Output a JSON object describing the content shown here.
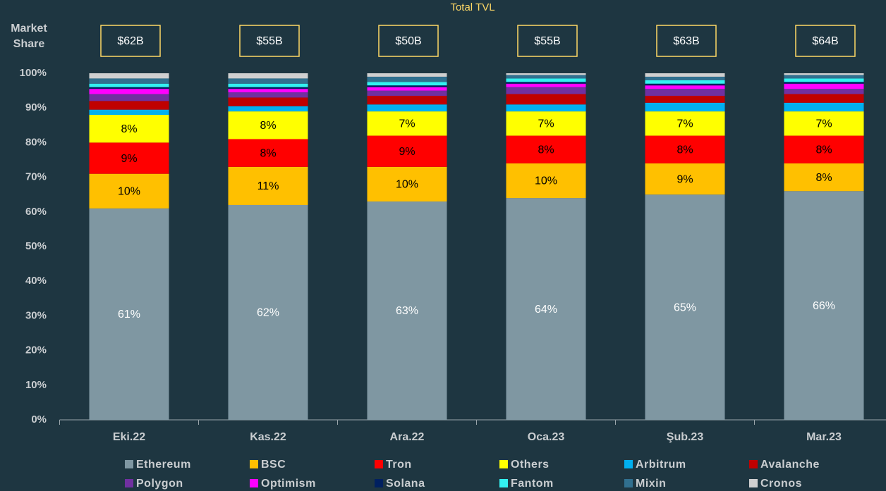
{
  "chart_data": {
    "type": "stacked_bar",
    "y_label": "Market Share",
    "categories": [
      "Eki.22",
      "Kas.22",
      "Ara.22",
      "Oca.23",
      "Şub.23",
      "Mar.23"
    ],
    "tvl": {
      "title": "Total TVL",
      "values": [
        62,
        55,
        50,
        55,
        63,
        64
      ],
      "value_labels": [
        "$62B",
        "$55B",
        "$50B",
        "$55B",
        "$63B",
        "$64B"
      ]
    },
    "series": [
      {
        "name": "Ethereum",
        "color": "#7f97a2",
        "values": [
          61,
          62,
          63,
          64,
          65,
          66
        ],
        "value_labels": [
          "61%",
          "62%",
          "63%",
          "64%",
          "65%",
          "66%"
        ]
      },
      {
        "name": "BSC",
        "color": "#ffc000",
        "values": [
          10,
          11,
          10,
          10,
          9,
          8
        ],
        "value_labels": [
          "10%",
          "11%",
          "10%",
          "10%",
          "9%",
          "8%"
        ]
      },
      {
        "name": "Tron",
        "color": "#ff0000",
        "values": [
          9,
          8,
          9,
          8,
          8,
          8
        ],
        "value_labels": [
          "9%",
          "8%",
          "9%",
          "8%",
          "8%",
          "8%"
        ]
      },
      {
        "name": "Others",
        "color": "#ffff00",
        "values": [
          8,
          8,
          7,
          7,
          7,
          7
        ],
        "value_labels": [
          "8%",
          "8%",
          "7%",
          "7%",
          "7%",
          "7%"
        ]
      },
      {
        "name": "Arbitrum",
        "color": "#00b0f0",
        "values": [
          1.5,
          1.5,
          2,
          2,
          2.5,
          2.5
        ]
      },
      {
        "name": "Avalanche",
        "color": "#c00000",
        "values": [
          2.5,
          2.5,
          2.5,
          3,
          2,
          2.5
        ]
      },
      {
        "name": "Polygon",
        "color": "#7030a0",
        "values": [
          2,
          1.5,
          1.5,
          2,
          2,
          1.5
        ]
      },
      {
        "name": "Optimism",
        "color": "#ff00ff",
        "values": [
          1.5,
          1,
          1,
          1,
          1,
          1.5
        ]
      },
      {
        "name": "Solana",
        "color": "#002060",
        "values": [
          0.5,
          0.5,
          0.5,
          0.5,
          0.5,
          0.5
        ]
      },
      {
        "name": "Fantom",
        "color": "#33f0f0",
        "values": [
          1,
          1,
          1,
          1,
          1,
          1
        ]
      },
      {
        "name": "Mixin",
        "color": "#31708f",
        "values": [
          1.5,
          1.5,
          1.5,
          1,
          1,
          1
        ]
      },
      {
        "name": "Cronos",
        "color": "#d0d0d0",
        "values": [
          1.5,
          1.5,
          1,
          0.5,
          1,
          0.5
        ]
      }
    ],
    "ylim": [
      0,
      100
    ],
    "yticks": [
      {
        "value": 0,
        "label": "0%"
      },
      {
        "value": 10,
        "label": "10%"
      },
      {
        "value": 20,
        "label": "20%"
      },
      {
        "value": 30,
        "label": "30%"
      },
      {
        "value": 40,
        "label": "40%"
      },
      {
        "value": 50,
        "label": "50%"
      },
      {
        "value": 60,
        "label": "60%"
      },
      {
        "value": 70,
        "label": "70%"
      },
      {
        "value": 80,
        "label": "80%"
      },
      {
        "value": 90,
        "label": "90%"
      },
      {
        "value": 100,
        "label": "100%"
      }
    ],
    "legend": "bottom",
    "grid": false
  }
}
